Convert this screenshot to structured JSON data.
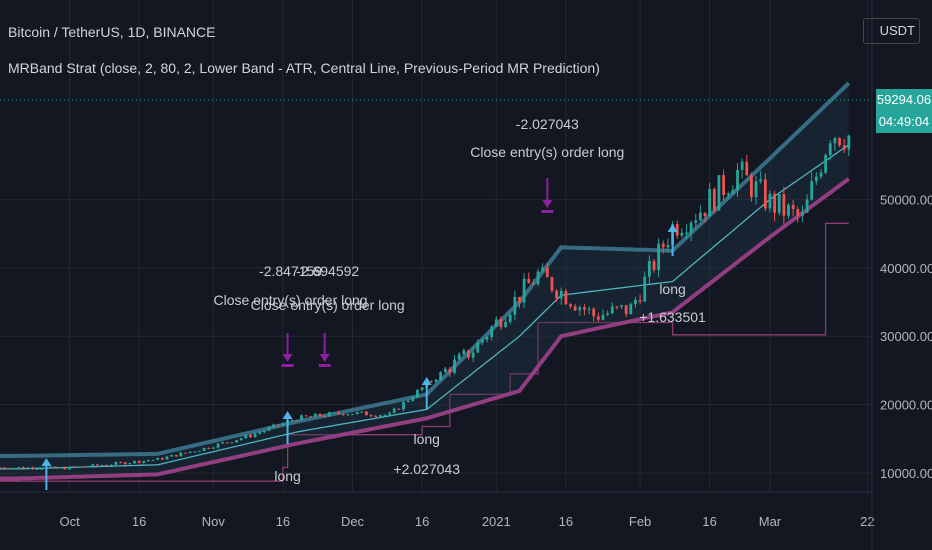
{
  "header": {
    "symbol_line": "Bitcoin / TetherUS, 1D, BINANCE",
    "study_line": "MRBand Strat (close, 2, 80, 2, Lower Band - ATR, Central Line, Previous-Period MR Prediction)"
  },
  "currency_button": "USDT",
  "current_price": "59294.06",
  "countdown": "04:49:04",
  "colors": {
    "background": "#131722",
    "up_candle": "#26a69a",
    "down_candle": "#ef5350",
    "upper_band": "#3d7a92",
    "lower_band": "#a0418a",
    "central_line": "#4fb3bf",
    "trail_stop": "#8e3a6e",
    "long_arrow": "#4fb3e6",
    "close_arrow": "#8f1fa0",
    "signal_text": "#c9ccd4"
  },
  "chart_data": {
    "type": "candlestick",
    "title": "Bitcoin / TetherUS, 1D, BINANCE",
    "ylim": [
      4000,
      70000
    ],
    "y_ticks": [
      10000,
      20000,
      30000,
      40000,
      50000
    ],
    "y_tick_labels": [
      "10000.00",
      "20000.00",
      "30000.00",
      "40000.00",
      "50000.00"
    ],
    "x_ticks": [
      "Oct",
      "16",
      "Nov",
      "16",
      "Dec",
      "16",
      "2021",
      "16",
      "Feb",
      "16",
      "Mar",
      "22"
    ],
    "grid": true,
    "series": [
      {
        "name": "BTC/USDT close (approx.)",
        "x": [
          "2020-09-20",
          "2020-09-30",
          "2020-10-10",
          "2020-10-20",
          "2020-10-30",
          "2020-11-09",
          "2020-11-19",
          "2020-11-29",
          "2020-12-09",
          "2020-12-17",
          "2020-12-27",
          "2021-01-06",
          "2021-01-10",
          "2021-01-15",
          "2021-01-22",
          "2021-01-30",
          "2021-02-08",
          "2021-02-14",
          "2021-02-22",
          "2021-03-01",
          "2021-03-08",
          "2021-03-14",
          "2021-03-18"
        ],
        "values": [
          10800,
          10700,
          11300,
          12000,
          13600,
          15500,
          18000,
          18800,
          18500,
          23000,
          28000,
          36000,
          39000,
          36500,
          33000,
          34000,
          46000,
          48500,
          54000,
          49500,
          47000,
          60000,
          59294
        ]
      },
      {
        "name": "Upper Band",
        "x": [
          "2020-09-20",
          "2020-10-20",
          "2020-11-19",
          "2020-12-17",
          "2021-01-06",
          "2021-01-15",
          "2021-02-08",
          "2021-03-01",
          "2021-03-18"
        ],
        "values": [
          12500,
          12800,
          17500,
          21500,
          35000,
          43000,
          42500,
          56000,
          67000
        ]
      },
      {
        "name": "Central Line",
        "x": [
          "2020-09-20",
          "2020-10-20",
          "2020-11-19",
          "2020-12-17",
          "2021-01-06",
          "2021-01-15",
          "2021-02-08",
          "2021-03-01",
          "2021-03-18"
        ],
        "values": [
          10600,
          11200,
          16000,
          19300,
          30000,
          36000,
          38000,
          50000,
          58000
        ]
      },
      {
        "name": "Lower Band",
        "x": [
          "2020-09-20",
          "2020-10-20",
          "2020-11-19",
          "2020-12-17",
          "2021-01-06",
          "2021-01-15",
          "2021-02-08",
          "2021-03-01",
          "2021-03-18"
        ],
        "values": [
          9200,
          9800,
          14300,
          18000,
          22000,
          30000,
          33500,
          44500,
          53000
        ]
      }
    ],
    "signals": [
      {
        "type": "long",
        "label": "long",
        "date": "2020-09-26"
      },
      {
        "type": "long",
        "label": "long",
        "date": "2020-11-17"
      },
      {
        "type": "close",
        "label": "-2.847159",
        "date": "2020-11-17"
      },
      {
        "type": "close",
        "label": "-2.694592",
        "date": "2020-11-25"
      },
      {
        "type": "long",
        "label": "long",
        "value_label": "+2.027043",
        "date": "2020-12-17"
      },
      {
        "type": "close",
        "label": "-2.027043",
        "date": "2021-01-12"
      },
      {
        "type": "long",
        "label": "long",
        "value_label": "+1.633501",
        "date": "2021-02-08"
      }
    ],
    "annotations": [
      "-2.847159",
      "-2.694592",
      "Close entry(s) order long",
      "-2.027043",
      "Close entry(s) order long",
      "long",
      "long",
      "+2.027043",
      "long",
      "+1.633501"
    ]
  }
}
